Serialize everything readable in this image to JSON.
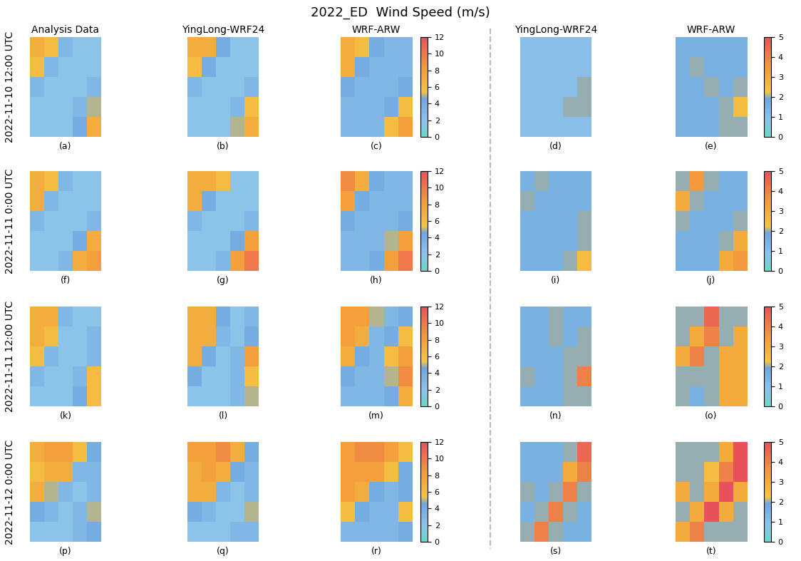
{
  "chart_data": {
    "type": "heatmap",
    "title": "2022_ED  Wind Speed (m/s)",
    "tick_labels": false,
    "groups": [
      {
        "columns": [
          "Analysis Data",
          "YingLong-WRF24",
          "WRF-ARW"
        ],
        "colorbar": {
          "range": [
            0,
            12
          ],
          "ticks": [
            0,
            2,
            4,
            6,
            8,
            10,
            12
          ]
        }
      },
      {
        "columns": [
          "YingLong-WRF24",
          "WRF-ARW"
        ],
        "colorbar": {
          "range": [
            0,
            5
          ],
          "ticks": [
            0,
            1,
            2,
            3,
            4,
            5
          ]
        }
      }
    ],
    "rows": [
      {
        "label": "2022-11-10 12:00 UTC",
        "panels": [
          {
            "label": "(a)",
            "cells": [
              [
                7,
                6,
                3,
                2,
                2
              ],
              [
                6,
                3,
                2,
                2,
                2
              ],
              [
                3,
                2,
                2,
                2,
                3
              ],
              [
                2,
                2,
                2,
                3,
                5
              ],
              [
                2,
                2,
                2,
                4,
                7
              ]
            ]
          },
          {
            "label": "(b)",
            "cells": [
              [
                7,
                7,
                4,
                2,
                2
              ],
              [
                6,
                4,
                2,
                2,
                2
              ],
              [
                3,
                2,
                2,
                2,
                3
              ],
              [
                2,
                2,
                2,
                3,
                6
              ],
              [
                2,
                2,
                2,
                5,
                7
              ]
            ]
          },
          {
            "label": "(c)",
            "cells": [
              [
                7,
                6,
                4,
                3,
                3
              ],
              [
                7,
                4,
                3,
                3,
                3
              ],
              [
                4,
                3,
                3,
                3,
                4
              ],
              [
                3,
                3,
                3,
                4,
                6
              ],
              [
                3,
                3,
                3,
                6,
                8
              ]
            ]
          },
          {
            "label": "(d)",
            "cells": [
              [
                1,
                1,
                1,
                1,
                1
              ],
              [
                1,
                1,
                1,
                1,
                1
              ],
              [
                1,
                1,
                1,
                1,
                2
              ],
              [
                1,
                1,
                1,
                2,
                2
              ],
              [
                1,
                1,
                1,
                1,
                1
              ]
            ]
          },
          {
            "label": "(e)",
            "cells": [
              [
                1.5,
                1.5,
                1.5,
                1.5,
                1.5
              ],
              [
                1.5,
                2,
                1.5,
                1.5,
                1.5
              ],
              [
                1.5,
                1.5,
                2,
                1.5,
                2
              ],
              [
                1.5,
                1.5,
                1.5,
                2,
                2.5
              ],
              [
                1.5,
                1.5,
                1.5,
                2,
                2
              ]
            ]
          }
        ]
      },
      {
        "label": "2022-11-11 0:00 UTC",
        "panels": [
          {
            "label": "(f)",
            "cells": [
              [
                7,
                6,
                3,
                2,
                2
              ],
              [
                7,
                3,
                2,
                2,
                2
              ],
              [
                3,
                2,
                2,
                2,
                3
              ],
              [
                2,
                2,
                2,
                4,
                7
              ],
              [
                2,
                2,
                3,
                7,
                8
              ]
            ]
          },
          {
            "label": "(g)",
            "cells": [
              [
                7,
                7,
                6,
                2,
                2
              ],
              [
                7,
                4,
                2,
                2,
                2
              ],
              [
                3,
                2,
                2,
                2,
                3
              ],
              [
                2,
                2,
                2,
                4,
                8
              ],
              [
                2,
                2,
                3,
                8,
                10
              ]
            ]
          },
          {
            "label": "(h)",
            "cells": [
              [
                9,
                7,
                4,
                3,
                3
              ],
              [
                8,
                4,
                3,
                3,
                3
              ],
              [
                4,
                3,
                3,
                3,
                4
              ],
              [
                3,
                3,
                3,
                5,
                8
              ],
              [
                3,
                3,
                4,
                8,
                10
              ]
            ]
          },
          {
            "label": "(i)",
            "cells": [
              [
                1.5,
                2,
                1.5,
                1.5,
                1.5
              ],
              [
                2,
                1.5,
                1.5,
                1.5,
                1.5
              ],
              [
                1.5,
                1.5,
                1.5,
                1.5,
                2
              ],
              [
                1.5,
                1.5,
                1.5,
                1.5,
                2
              ],
              [
                1.5,
                1.5,
                1.5,
                2,
                2.5
              ]
            ]
          },
          {
            "label": "(j)",
            "cells": [
              [
                2,
                3.5,
                2,
                1.5,
                1.5
              ],
              [
                3,
                2,
                1.5,
                1.5,
                1.5
              ],
              [
                2,
                1.5,
                1.5,
                1.5,
                2
              ],
              [
                1.5,
                1.5,
                1.5,
                2,
                3
              ],
              [
                1.5,
                1.5,
                1.5,
                3,
                3.5
              ]
            ]
          }
        ]
      },
      {
        "label": "2022-11-11 12:00 UTC",
        "panels": [
          {
            "label": "(k)",
            "cells": [
              [
                7,
                7,
                3,
                2,
                2
              ],
              [
                7,
                6,
                2,
                2,
                3
              ],
              [
                6,
                3,
                2,
                2,
                3
              ],
              [
                3,
                2,
                2,
                3,
                6
              ],
              [
                2,
                2,
                2,
                4,
                6
              ]
            ]
          },
          {
            "label": "(l)",
            "cells": [
              [
                7,
                7,
                4,
                2,
                3
              ],
              [
                7,
                7,
                3,
                2,
                4
              ],
              [
                7,
                4,
                2,
                3,
                8
              ],
              [
                4,
                2,
                2,
                3,
                6
              ],
              [
                2,
                2,
                2,
                3,
                5
              ]
            ]
          },
          {
            "label": "(m)",
            "cells": [
              [
                8,
                8,
                5,
                3,
                4
              ],
              [
                8,
                7,
                3,
                4,
                6
              ],
              [
                7,
                4,
                3,
                6,
                8
              ],
              [
                4,
                3,
                3,
                5,
                9
              ],
              [
                3,
                3,
                3,
                4,
                7
              ]
            ]
          },
          {
            "label": "(n)",
            "cells": [
              [
                1.5,
                1.5,
                2,
                1.5,
                1.5
              ],
              [
                1.5,
                1.5,
                2,
                1.5,
                2
              ],
              [
                1.5,
                1.5,
                1.5,
                2,
                2
              ],
              [
                2,
                1.5,
                1.5,
                2,
                4
              ],
              [
                1.5,
                1.5,
                1.5,
                2,
                2
              ]
            ]
          },
          {
            "label": "(o)",
            "cells": [
              [
                2,
                2,
                4.5,
                2,
                2
              ],
              [
                2,
                3,
                4,
                2,
                3
              ],
              [
                3,
                4,
                2,
                3,
                3
              ],
              [
                2,
                2,
                2,
                3,
                3
              ],
              [
                2,
                1.5,
                2,
                3,
                3
              ]
            ]
          }
        ]
      },
      {
        "label": "2022-11-12 0:00 UTC",
        "panels": [
          {
            "label": "(p)",
            "cells": [
              [
                7,
                8,
                8,
                6,
                4
              ],
              [
                6,
                7,
                7,
                3,
                3
              ],
              [
                7,
                5,
                3,
                2,
                3
              ],
              [
                4,
                3,
                2,
                3,
                5
              ],
              [
                2,
                2,
                2,
                3,
                4
              ]
            ]
          },
          {
            "label": "(q)",
            "cells": [
              [
                8,
                8,
                9,
                7,
                4
              ],
              [
                7,
                8,
                7,
                4,
                3
              ],
              [
                7,
                7,
                3,
                2,
                3
              ],
              [
                4,
                3,
                2,
                2,
                5
              ],
              [
                2,
                2,
                2,
                3,
                3
              ]
            ]
          },
          {
            "label": "(r)",
            "cells": [
              [
                8,
                9,
                9,
                8,
                6
              ],
              [
                8,
                8,
                8,
                6,
                4
              ],
              [
                8,
                7,
                4,
                3,
                4
              ],
              [
                6,
                4,
                3,
                3,
                6
              ],
              [
                3,
                3,
                3,
                3,
                4
              ]
            ]
          },
          {
            "label": "(s)",
            "cells": [
              [
                1.5,
                1.5,
                1.5,
                2,
                4.5
              ],
              [
                1.5,
                1.5,
                1.5,
                3,
                4
              ],
              [
                2,
                1.5,
                2,
                4,
                2
              ],
              [
                1.5,
                2,
                4,
                2,
                1.5
              ],
              [
                2,
                4,
                2,
                1.5,
                1.5
              ]
            ]
          },
          {
            "label": "(t)",
            "cells": [
              [
                2,
                2,
                2,
                3,
                5
              ],
              [
                2,
                2,
                2.5,
                4,
                5
              ],
              [
                3,
                2,
                3,
                5,
                3
              ],
              [
                2,
                3,
                5,
                3,
                2
              ],
              [
                3,
                4,
                2,
                2,
                2
              ]
            ]
          }
        ]
      }
    ]
  }
}
